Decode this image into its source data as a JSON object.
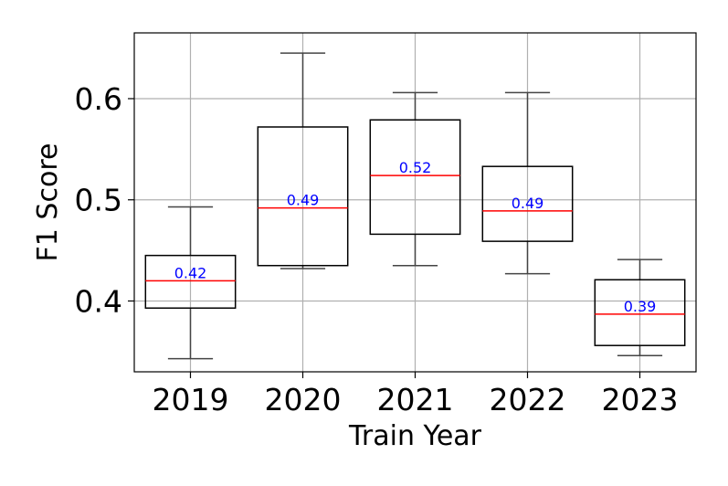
{
  "chart_data": {
    "type": "box",
    "xlabel": "Train Year",
    "ylabel": "F1 Score",
    "ylim": [
      0.33,
      0.665
    ],
    "yticks": [
      0.4,
      0.5,
      0.6
    ],
    "ytick_labels": [
      "0.4",
      "0.5",
      "0.6"
    ],
    "grid": true,
    "categories": [
      "2019",
      "2020",
      "2021",
      "2022",
      "2023"
    ],
    "boxes": [
      {
        "category": "2019",
        "whisker_low": 0.343,
        "q1": 0.393,
        "median": 0.42,
        "q3": 0.445,
        "whisker_high": 0.493,
        "median_label": "0.42"
      },
      {
        "category": "2020",
        "whisker_low": 0.432,
        "q1": 0.435,
        "median": 0.492,
        "q3": 0.572,
        "whisker_high": 0.645,
        "median_label": "0.49"
      },
      {
        "category": "2021",
        "whisker_low": 0.435,
        "q1": 0.466,
        "median": 0.524,
        "q3": 0.579,
        "whisker_high": 0.606,
        "median_label": "0.52"
      },
      {
        "category": "2022",
        "whisker_low": 0.427,
        "q1": 0.459,
        "median": 0.489,
        "q3": 0.533,
        "whisker_high": 0.606,
        "median_label": "0.49"
      },
      {
        "category": "2023",
        "whisker_low": 0.346,
        "q1": 0.356,
        "median": 0.387,
        "q3": 0.421,
        "whisker_high": 0.441,
        "median_label": "0.39"
      }
    ],
    "colors": {
      "box_edge": "#000000",
      "whisker": "#444444",
      "median_line": "#ff0000",
      "median_label": "#0000ff",
      "grid": "#b0b0b0"
    }
  }
}
